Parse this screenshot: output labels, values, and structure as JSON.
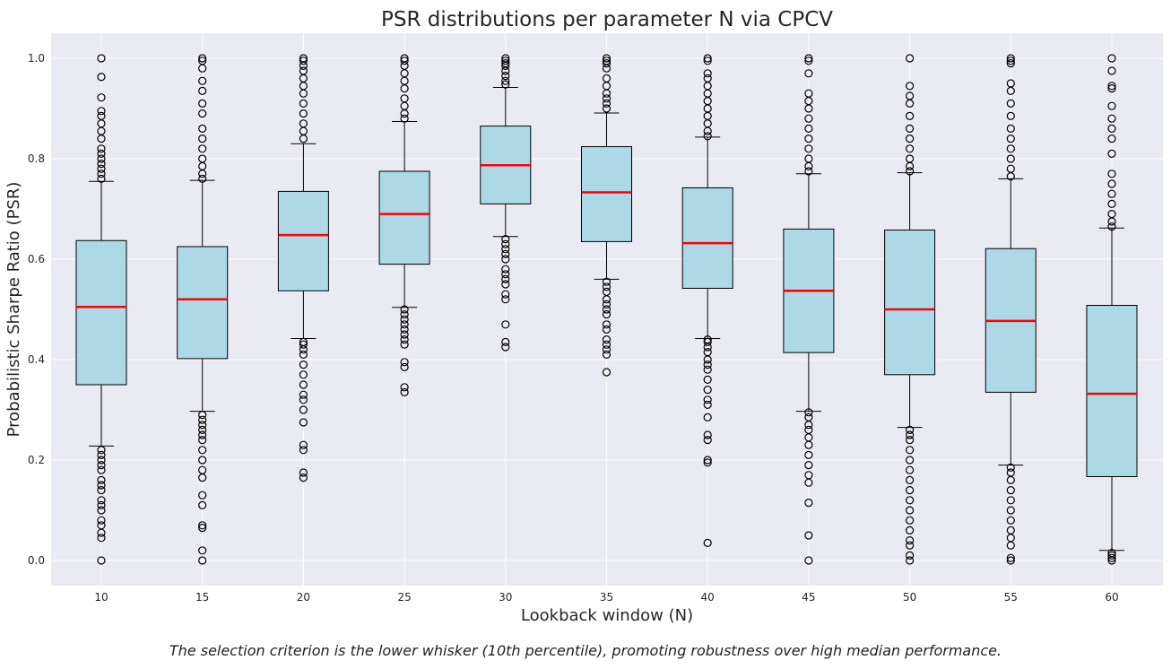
{
  "chart_data": {
    "type": "box",
    "title": "PSR distributions per parameter N via CPCV",
    "xlabel": "Lookback window (N)",
    "ylabel": "Probabilistic Sharpe Ratio (PSR)",
    "ylim": [
      -0.05,
      1.05
    ],
    "yticks": [
      0.0,
      0.2,
      0.4,
      0.6,
      0.8,
      1.0
    ],
    "ytick_labels": [
      "0.0",
      "0.2",
      "0.4",
      "0.6",
      "0.8",
      "1.0"
    ],
    "grid": true,
    "colors": {
      "box_fill": "#add8e6",
      "median": "#ff0000",
      "background": "#eaeaf2",
      "grid": "#ffffff"
    },
    "categories": [
      "10",
      "15",
      "20",
      "25",
      "30",
      "35",
      "40",
      "45",
      "50",
      "55",
      "60"
    ],
    "series": [
      {
        "name": "10",
        "q1": 0.35,
        "median": 0.505,
        "q3": 0.637,
        "whislo": 0.228,
        "whishi": 0.755,
        "fliers": [
          1.0,
          0.963,
          0.922,
          0.895,
          0.885,
          0.87,
          0.855,
          0.84,
          0.82,
          0.81,
          0.8,
          0.79,
          0.78,
          0.77,
          0.76,
          0.22,
          0.21,
          0.2,
          0.19,
          0.18,
          0.16,
          0.15,
          0.14,
          0.12,
          0.11,
          0.1,
          0.08,
          0.07,
          0.055,
          0.045,
          0.0
        ]
      },
      {
        "name": "15",
        "q1": 0.402,
        "median": 0.52,
        "q3": 0.625,
        "whislo": 0.297,
        "whishi": 0.757,
        "fliers": [
          1.0,
          0.995,
          0.98,
          0.955,
          0.935,
          0.91,
          0.89,
          0.86,
          0.84,
          0.82,
          0.8,
          0.785,
          0.77,
          0.76,
          0.29,
          0.28,
          0.27,
          0.26,
          0.25,
          0.24,
          0.22,
          0.2,
          0.18,
          0.165,
          0.13,
          0.11,
          0.07,
          0.065,
          0.02,
          0.0
        ]
      },
      {
        "name": "20",
        "q1": 0.537,
        "median": 0.648,
        "q3": 0.735,
        "whislo": 0.442,
        "whishi": 0.83,
        "fliers": [
          1.0,
          0.995,
          0.985,
          0.975,
          0.96,
          0.945,
          0.93,
          0.91,
          0.89,
          0.87,
          0.855,
          0.84,
          0.435,
          0.43,
          0.42,
          0.41,
          0.39,
          0.37,
          0.35,
          0.33,
          0.32,
          0.3,
          0.275,
          0.23,
          0.22,
          0.175,
          0.165
        ]
      },
      {
        "name": "25",
        "q1": 0.59,
        "median": 0.69,
        "q3": 0.775,
        "whislo": 0.504,
        "whishi": 0.874,
        "fliers": [
          1.0,
          0.995,
          0.985,
          0.97,
          0.955,
          0.94,
          0.92,
          0.905,
          0.89,
          0.88,
          0.5,
          0.49,
          0.48,
          0.47,
          0.46,
          0.45,
          0.44,
          0.43,
          0.395,
          0.385,
          0.345,
          0.335
        ]
      },
      {
        "name": "30",
        "q1": 0.71,
        "median": 0.787,
        "q3": 0.865,
        "whislo": 0.645,
        "whishi": 0.942,
        "fliers": [
          1.0,
          0.995,
          0.99,
          0.985,
          0.975,
          0.965,
          0.955,
          0.948,
          0.64,
          0.63,
          0.62,
          0.61,
          0.6,
          0.58,
          0.57,
          0.56,
          0.55,
          0.53,
          0.52,
          0.47,
          0.435,
          0.425
        ]
      },
      {
        "name": "35",
        "q1": 0.635,
        "median": 0.733,
        "q3": 0.824,
        "whislo": 0.56,
        "whishi": 0.891,
        "fliers": [
          1.0,
          0.995,
          0.99,
          0.98,
          0.96,
          0.945,
          0.93,
          0.92,
          0.91,
          0.9,
          0.555,
          0.545,
          0.535,
          0.52,
          0.51,
          0.5,
          0.49,
          0.47,
          0.46,
          0.44,
          0.43,
          0.42,
          0.41,
          0.375
        ]
      },
      {
        "name": "40",
        "q1": 0.542,
        "median": 0.632,
        "q3": 0.742,
        "whislo": 0.442,
        "whishi": 0.843,
        "fliers": [
          1.0,
          0.995,
          0.97,
          0.96,
          0.945,
          0.93,
          0.915,
          0.9,
          0.885,
          0.87,
          0.855,
          0.845,
          0.44,
          0.435,
          0.425,
          0.415,
          0.4,
          0.39,
          0.38,
          0.36,
          0.34,
          0.32,
          0.31,
          0.285,
          0.25,
          0.24,
          0.2,
          0.195,
          0.035
        ]
      },
      {
        "name": "45",
        "q1": 0.414,
        "median": 0.537,
        "q3": 0.66,
        "whislo": 0.297,
        "whishi": 0.77,
        "fliers": [
          1.0,
          0.995,
          0.97,
          0.93,
          0.915,
          0.9,
          0.88,
          0.86,
          0.84,
          0.82,
          0.8,
          0.785,
          0.775,
          0.295,
          0.285,
          0.27,
          0.26,
          0.245,
          0.23,
          0.21,
          0.19,
          0.17,
          0.155,
          0.115,
          0.05,
          0.0
        ]
      },
      {
        "name": "50",
        "q1": 0.37,
        "median": 0.5,
        "q3": 0.658,
        "whislo": 0.265,
        "whishi": 0.772,
        "fliers": [
          1.0,
          0.945,
          0.925,
          0.91,
          0.885,
          0.86,
          0.84,
          0.82,
          0.8,
          0.785,
          0.775,
          0.26,
          0.25,
          0.24,
          0.22,
          0.2,
          0.18,
          0.16,
          0.14,
          0.12,
          0.1,
          0.08,
          0.06,
          0.04,
          0.03,
          0.01,
          0.0
        ]
      },
      {
        "name": "55",
        "q1": 0.335,
        "median": 0.477,
        "q3": 0.621,
        "whislo": 0.19,
        "whishi": 0.76,
        "fliers": [
          1.0,
          0.995,
          0.99,
          0.95,
          0.935,
          0.91,
          0.885,
          0.86,
          0.84,
          0.82,
          0.8,
          0.78,
          0.765,
          0.185,
          0.175,
          0.16,
          0.14,
          0.12,
          0.1,
          0.08,
          0.06,
          0.045,
          0.03,
          0.005,
          0.0
        ]
      },
      {
        "name": "60",
        "q1": 0.167,
        "median": 0.332,
        "q3": 0.508,
        "whislo": 0.02,
        "whishi": 0.662,
        "fliers": [
          1.0,
          0.975,
          0.945,
          0.94,
          0.905,
          0.88,
          0.86,
          0.84,
          0.81,
          0.77,
          0.75,
          0.73,
          0.71,
          0.69,
          0.675,
          0.665,
          0.015,
          0.01,
          0.005,
          0.0
        ]
      }
    ]
  },
  "caption": "The selection criterion is the lower whisker (10th percentile), promoting robustness over high median performance."
}
